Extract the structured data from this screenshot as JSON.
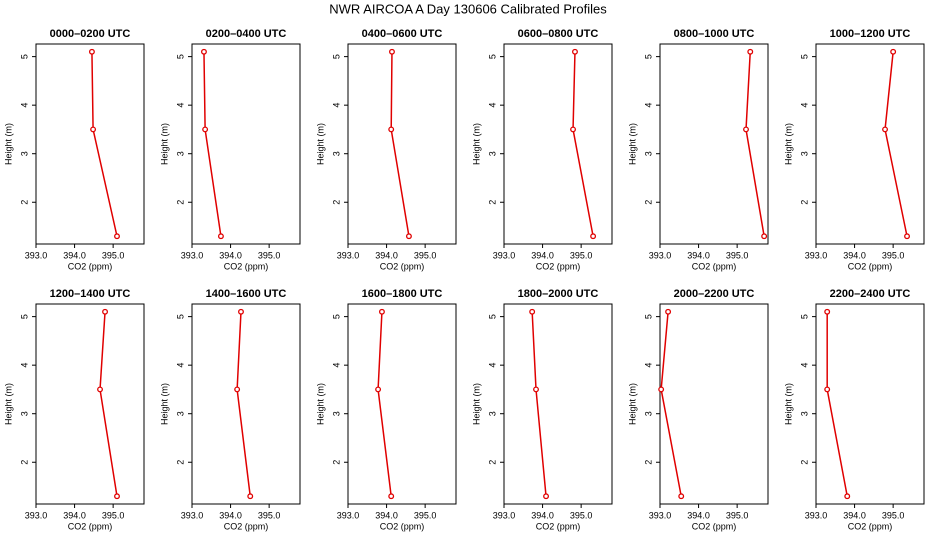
{
  "title": "NWR AIRCOA A  Day 130606  Calibrated Profiles",
  "chart_data": [
    {
      "type": "line",
      "title": "0000–0200 UTC",
      "x_label": "CO2 (ppm)",
      "y_label": "Height (m)",
      "color": "#e00000",
      "x": [
        394.45,
        394.48,
        395.1
      ],
      "values": [
        5.1,
        3.5,
        1.3
      ],
      "xlim": [
        393,
        395.8
      ],
      "ylim": [
        1.14,
        5.26
      ],
      "xticks": [
        {
          "value": 393,
          "label": "393.0"
        },
        {
          "value": 394,
          "label": "394.0"
        },
        {
          "value": 395,
          "label": "395.0"
        }
      ],
      "yticks": [
        2,
        3,
        4,
        5
      ]
    },
    {
      "type": "line",
      "title": "0200–0400 UTC",
      "x_label": "CO2 (ppm)",
      "y_label": "Height (m)",
      "color": "#e00000",
      "x": [
        393.31,
        393.34,
        393.75
      ],
      "values": [
        5.1,
        3.5,
        1.3
      ],
      "xlim": [
        393,
        395.8
      ],
      "ylim": [
        1.14,
        5.26
      ],
      "xticks": [
        {
          "value": 393,
          "label": "393.0"
        },
        {
          "value": 394,
          "label": "394.0"
        },
        {
          "value": 395,
          "label": "395.0"
        }
      ],
      "yticks": [
        2,
        3,
        4,
        5
      ]
    },
    {
      "type": "line",
      "title": "0400–0600 UTC",
      "x_label": "CO2 (ppm)",
      "y_label": "Height (m)",
      "color": "#e00000",
      "x": [
        394.14,
        394.12,
        394.58
      ],
      "values": [
        5.1,
        3.5,
        1.3
      ],
      "xlim": [
        393,
        395.8
      ],
      "ylim": [
        1.14,
        5.26
      ],
      "xticks": [
        {
          "value": 393,
          "label": "393.0"
        },
        {
          "value": 394,
          "label": "394.0"
        },
        {
          "value": 395,
          "label": "395.0"
        }
      ],
      "yticks": [
        2,
        3,
        4,
        5
      ]
    },
    {
      "type": "line",
      "title": "0600–0800 UTC",
      "x_label": "CO2 (ppm)",
      "y_label": "Height (m)",
      "color": "#e00000",
      "x": [
        394.84,
        394.79,
        395.31
      ],
      "values": [
        5.1,
        3.5,
        1.3
      ],
      "xlim": [
        393,
        395.8
      ],
      "ylim": [
        1.14,
        5.26
      ],
      "xticks": [
        {
          "value": 393,
          "label": "393.0"
        },
        {
          "value": 394,
          "label": "394.0"
        },
        {
          "value": 395,
          "label": "395.0"
        }
      ],
      "yticks": [
        2,
        3,
        4,
        5
      ]
    },
    {
      "type": "line",
      "title": "0800–1000 UTC",
      "x_label": "CO2 (ppm)",
      "y_label": "Height (m)",
      "color": "#e00000",
      "x": [
        395.34,
        395.23,
        395.7
      ],
      "values": [
        5.1,
        3.5,
        1.3
      ],
      "xlim": [
        393,
        395.8
      ],
      "ylim": [
        1.14,
        5.26
      ],
      "xticks": [
        {
          "value": 393,
          "label": "393.0"
        },
        {
          "value": 394,
          "label": "394.0"
        },
        {
          "value": 395,
          "label": "395.0"
        }
      ],
      "yticks": [
        2,
        3,
        4,
        5
      ]
    },
    {
      "type": "line",
      "title": "1000–1200 UTC",
      "x_label": "CO2 (ppm)",
      "y_label": "Height (m)",
      "color": "#e00000",
      "x": [
        395.0,
        394.79,
        395.36
      ],
      "values": [
        5.1,
        3.5,
        1.3
      ],
      "xlim": [
        393,
        395.8
      ],
      "ylim": [
        1.14,
        5.26
      ],
      "xticks": [
        {
          "value": 393,
          "label": "393.0"
        },
        {
          "value": 394,
          "label": "394.0"
        },
        {
          "value": 395,
          "label": "395.0"
        }
      ],
      "yticks": [
        2,
        3,
        4,
        5
      ]
    },
    {
      "type": "line",
      "title": "1200–1400 UTC",
      "x_label": "CO2 (ppm)",
      "y_label": "Height (m)",
      "color": "#e00000",
      "x": [
        394.79,
        394.66,
        395.1
      ],
      "values": [
        5.1,
        3.5,
        1.3
      ],
      "xlim": [
        393,
        395.8
      ],
      "ylim": [
        1.14,
        5.26
      ],
      "xticks": [
        {
          "value": 393,
          "label": "393.0"
        },
        {
          "value": 394,
          "label": "394.0"
        },
        {
          "value": 395,
          "label": "395.0"
        }
      ],
      "yticks": [
        2,
        3,
        4,
        5
      ]
    },
    {
      "type": "line",
      "title": "1400–1600 UTC",
      "x_label": "CO2 (ppm)",
      "y_label": "Height (m)",
      "color": "#e00000",
      "x": [
        394.27,
        394.17,
        394.51
      ],
      "values": [
        5.1,
        3.5,
        1.3
      ],
      "xlim": [
        393,
        395.8
      ],
      "ylim": [
        1.14,
        5.26
      ],
      "xticks": [
        {
          "value": 393,
          "label": "393.0"
        },
        {
          "value": 394,
          "label": "394.0"
        },
        {
          "value": 395,
          "label": "395.0"
        }
      ],
      "yticks": [
        2,
        3,
        4,
        5
      ]
    },
    {
      "type": "line",
      "title": "1600–1800 UTC",
      "x_label": "CO2 (ppm)",
      "y_label": "Height (m)",
      "color": "#e00000",
      "x": [
        393.88,
        393.78,
        394.12
      ],
      "values": [
        5.1,
        3.5,
        1.3
      ],
      "xlim": [
        393,
        395.8
      ],
      "ylim": [
        1.14,
        5.26
      ],
      "xticks": [
        {
          "value": 393,
          "label": "393.0"
        },
        {
          "value": 394,
          "label": "394.0"
        },
        {
          "value": 395,
          "label": "395.0"
        }
      ],
      "yticks": [
        2,
        3,
        4,
        5
      ]
    },
    {
      "type": "line",
      "title": "1800–2000 UTC",
      "x_label": "CO2 (ppm)",
      "y_label": "Height (m)",
      "color": "#e00000",
      "x": [
        393.73,
        393.83,
        394.09
      ],
      "values": [
        5.1,
        3.5,
        1.3
      ],
      "xlim": [
        393,
        395.8
      ],
      "ylim": [
        1.14,
        5.26
      ],
      "xticks": [
        {
          "value": 393,
          "label": "393.0"
        },
        {
          "value": 394,
          "label": "394.0"
        },
        {
          "value": 395,
          "label": "395.0"
        }
      ],
      "yticks": [
        2,
        3,
        4,
        5
      ]
    },
    {
      "type": "line",
      "title": "2000–2200 UTC",
      "x_label": "CO2 (ppm)",
      "y_label": "Height (m)",
      "color": "#e00000",
      "x": [
        393.21,
        393.03,
        393.55
      ],
      "values": [
        5.1,
        3.5,
        1.3
      ],
      "xlim": [
        393,
        395.8
      ],
      "ylim": [
        1.14,
        5.26
      ],
      "xticks": [
        {
          "value": 393,
          "label": "393.0"
        },
        {
          "value": 394,
          "label": "394.0"
        },
        {
          "value": 395,
          "label": "395.0"
        }
      ],
      "yticks": [
        2,
        3,
        4,
        5
      ]
    },
    {
      "type": "line",
      "title": "2200–2400 UTC",
      "x_label": "CO2 (ppm)",
      "y_label": "Height (m)",
      "color": "#e00000",
      "x": [
        393.29,
        393.29,
        393.81
      ],
      "values": [
        5.1,
        3.5,
        1.3
      ],
      "xlim": [
        393,
        395.8
      ],
      "ylim": [
        1.14,
        5.26
      ],
      "xticks": [
        {
          "value": 393,
          "label": "393.0"
        },
        {
          "value": 394,
          "label": "394.0"
        },
        {
          "value": 395,
          "label": "395.0"
        }
      ],
      "yticks": [
        2,
        3,
        4,
        5
      ]
    }
  ]
}
